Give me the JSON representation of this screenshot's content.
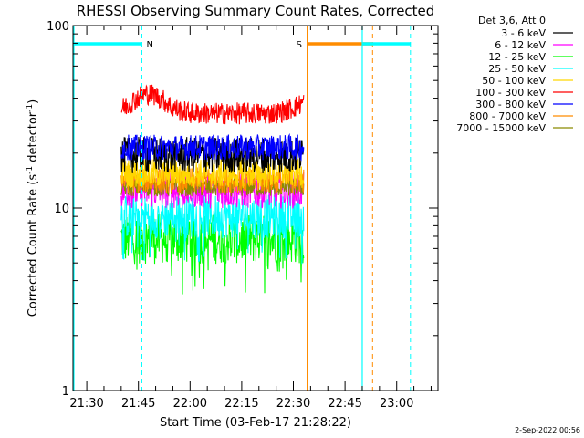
{
  "chart_data": {
    "type": "line",
    "title": "RHESSI Observing Summary Count Rates, Corrected",
    "xlabel": "Start Time (03-Feb-17 21:28:22)",
    "ylabel_main": "Corrected Count Rate (s",
    "ylabel_sup1": "-1",
    "ylabel_mid": " detector",
    "ylabel_sup2": "-1",
    "ylabel_end": ")",
    "y_scale": "log",
    "ylim": [
      1,
      100
    ],
    "y_ticks": [
      {
        "v": 1,
        "label": "1"
      },
      {
        "v": 10,
        "label": "10"
      },
      {
        "v": 100,
        "label": "100"
      }
    ],
    "xlim": [
      "21:26",
      "23:12"
    ],
    "x_ticks": [
      {
        "m": 90,
        "label": "21:30"
      },
      {
        "m": 105,
        "label": "21:45"
      },
      {
        "m": 120,
        "label": "22:00"
      },
      {
        "m": 135,
        "label": "22:15"
      },
      {
        "m": 150,
        "label": "22:30"
      },
      {
        "m": 165,
        "label": "22:45"
      },
      {
        "m": 180,
        "label": "23:00"
      }
    ],
    "legend_position": "top-right",
    "legend_header": "Det 3,6, Att 0",
    "data_start": "21:40",
    "data_end": "22:33",
    "series": [
      {
        "name": "3 - 6 keV",
        "color": "#000000",
        "level": 19.5,
        "noise": 0.1
      },
      {
        "name": "6 - 12 keV",
        "color": "#ff00ff",
        "level": 12.5,
        "noise": 0.1
      },
      {
        "name": "12 - 25 keV",
        "color": "#00ff00",
        "level": 6.8,
        "noise": 0.14
      },
      {
        "name": "25 - 50 keV",
        "color": "#00ffff",
        "level": 9.0,
        "noise": 0.12
      },
      {
        "name": "50 - 100 keV",
        "color": "#ffd700",
        "level": 15.5,
        "noise": 0.08
      },
      {
        "name": "100 - 300 keV",
        "color": "#ff0000",
        "level": 33.0,
        "noise": 0.06
      },
      {
        "name": "300 - 800 keV",
        "color": "#0000ff",
        "level": 21.5,
        "noise": 0.07
      },
      {
        "name": "800 - 7000 keV",
        "color": "#ff8c00",
        "level": 14.2,
        "noise": 0.07
      },
      {
        "name": "7000 - 15000 keV",
        "color": "#8b8b00",
        "level": 13.0,
        "noise": 0.05
      }
    ],
    "annotations": [
      {
        "type": "night",
        "label": "N",
        "bar_start": "21:26",
        "bar_end": "21:46",
        "line": "21:46",
        "color": "#00ffff"
      },
      {
        "type": "saa",
        "label": "S",
        "bar_start": "22:34",
        "bar_end": "22:53",
        "line_solid": "22:34",
        "line_dash": "22:53",
        "color": "#ff8c00"
      },
      {
        "type": "night",
        "label": "",
        "bar_start": "22:50",
        "bar_end": "23:04",
        "line_solid": "22:50",
        "line_dash": "23:04",
        "color": "#00ffff"
      }
    ]
  },
  "footer": {
    "timestamp": "2-Sep-2022 00:56"
  }
}
